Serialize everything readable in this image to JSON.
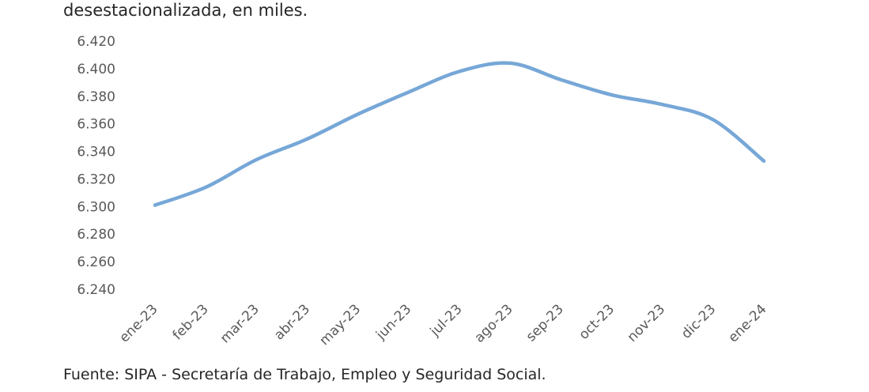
{
  "subtitle": "desestacionalizada, en miles.",
  "source": "Fuente: SIPA - Secretaría de Trabajo, Empleo y Seguridad Social.",
  "chart_data": {
    "type": "line",
    "categories": [
      "ene-23",
      "feb-23",
      "mar-23",
      "abr-23",
      "may-23",
      "jun-23",
      "jul-23",
      "ago-23",
      "sep-23",
      "oct-23",
      "nov-23",
      "dic-23",
      "ene-24"
    ],
    "series": [
      {
        "values": [
          6301,
          6314,
          6334,
          6349,
          6367,
          6383,
          6398,
          6404,
          6392,
          6381,
          6374,
          6363,
          6333
        ]
      }
    ],
    "y_ticks": [
      "6.420",
      "6.400",
      "6.380",
      "6.360",
      "6.340",
      "6.320",
      "6.300",
      "6.280",
      "6.260",
      "6.240"
    ],
    "ylim": [
      6240,
      6420
    ],
    "grid": false,
    "line_color": "#76A7D7"
  }
}
